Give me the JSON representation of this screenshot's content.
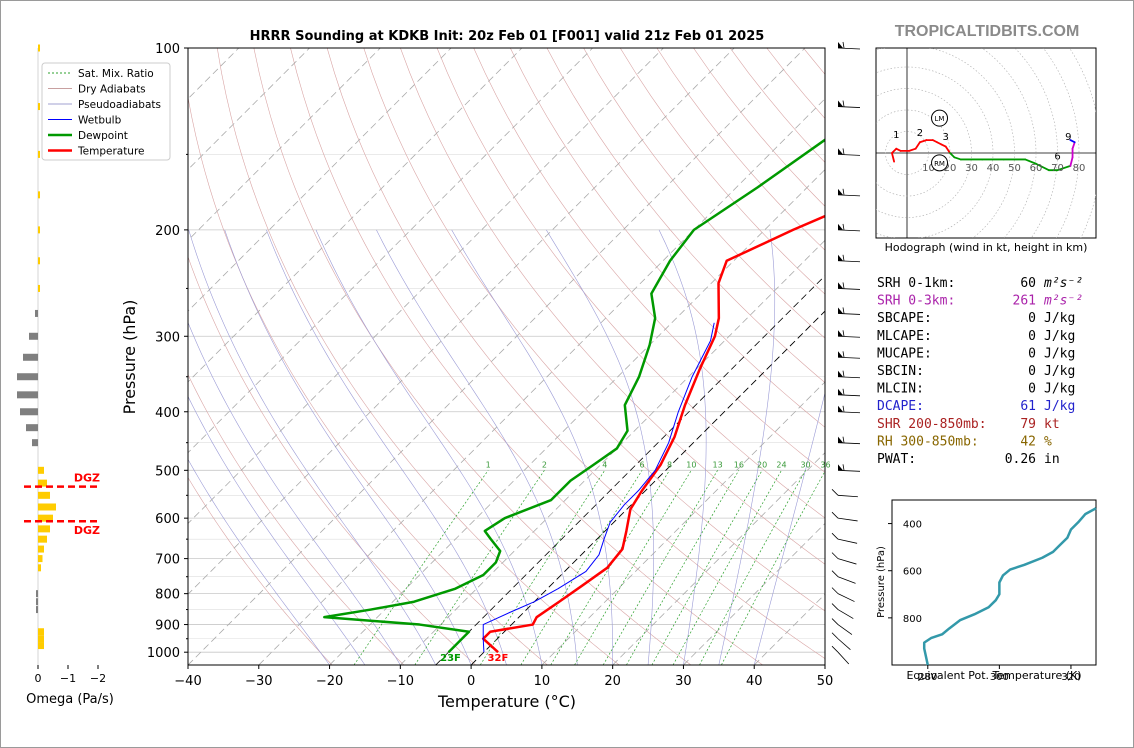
{
  "watermark": "TROPICALTIDBITS.COM",
  "chart_data": [
    {
      "type": "line",
      "name": "skewt",
      "title": "HRRR Sounding at KDKB Init: 20z Feb 01 [F001] valid 21z Feb 01 2025",
      "xlabel": "Temperature (°C)",
      "ylabel": "Pressure (hPa)",
      "xlim": [
        -40,
        50
      ],
      "ylim": [
        1050,
        100
      ],
      "y_scale": "log",
      "x_ticks": [
        -40,
        -30,
        -20,
        -10,
        0,
        10,
        20,
        30,
        40,
        50
      ],
      "x_tick_labels": [
        "−40",
        "−30",
        "−20",
        "−10",
        "0",
        "10",
        "20",
        "30",
        "40",
        "50"
      ],
      "y_ticks": [
        1000,
        900,
        800,
        700,
        600,
        500,
        400,
        300,
        200,
        100
      ],
      "legend": {
        "placement": "top-left",
        "entries": [
          {
            "label": "Sat. Mix. Ratio",
            "color": "#2ca02c",
            "style": "dotted"
          },
          {
            "label": "Dry Adiabats",
            "color": "#c8a0a0",
            "style": "solid"
          },
          {
            "label": "Pseudoadiabats",
            "color": "#a0a0d0",
            "style": "solid"
          },
          {
            "label": "Wetbulb",
            "color": "#0000ff",
            "style": "solid"
          },
          {
            "label": "Dewpoint",
            "color": "#009900",
            "style": "solid"
          },
          {
            "label": "Temperature",
            "color": "#ff0000",
            "style": "solid"
          }
        ]
      },
      "series": [
        {
          "name": "Temperature",
          "color": "#ff0000",
          "points": [
            [
              2,
              1000
            ],
            [
              -2,
              950
            ],
            [
              -2,
              925
            ],
            [
              3,
              900
            ],
            [
              2.5,
              875
            ],
            [
              3.5,
              825
            ],
            [
              4.5,
              775
            ],
            [
              5.5,
              725
            ],
            [
              5,
              675
            ],
            [
              3,
              630
            ],
            [
              0.5,
              580
            ],
            [
              -0.5,
              540
            ],
            [
              -1.5,
              490
            ],
            [
              -3.5,
              440
            ],
            [
              -6.5,
              390
            ],
            [
              -9.5,
              340
            ],
            [
              -12,
              300
            ],
            [
              -14,
              280
            ],
            [
              -19,
              245
            ],
            [
              -21,
              225
            ],
            [
              -16,
              200
            ],
            [
              -8,
              170
            ],
            [
              -2,
              140
            ],
            [
              0,
              120
            ],
            [
              3,
              105
            ],
            [
              4.5,
              100
            ]
          ]
        },
        {
          "name": "Dewpoint",
          "color": "#009900",
          "points": [
            [
              -5,
              1000
            ],
            [
              -5,
              960
            ],
            [
              -5,
              925
            ],
            [
              -13,
              900
            ],
            [
              -27.5,
              875
            ],
            [
              -22,
              850
            ],
            [
              -17,
              825
            ],
            [
              -13,
              785
            ],
            [
              -11,
              745
            ],
            [
              -11,
              710
            ],
            [
              -12,
              680
            ],
            [
              -15,
              650
            ],
            [
              -17,
              630
            ],
            [
              -16,
              600
            ],
            [
              -12,
              560
            ],
            [
              -12,
              520
            ],
            [
              -11,
              490
            ],
            [
              -10,
              460
            ],
            [
              -11,
              430
            ],
            [
              -15,
              390
            ],
            [
              -17,
              350
            ],
            [
              -20,
              310
            ],
            [
              -23,
              280
            ],
            [
              -27,
              255
            ],
            [
              -29,
              225
            ],
            [
              -30,
              200
            ],
            [
              -27,
              170
            ],
            [
              -24,
              140
            ],
            [
              -24,
              120
            ],
            [
              -22,
              100
            ]
          ]
        },
        {
          "name": "Wetbulb",
          "color": "#0000ff",
          "points": [
            [
              0,
              1000
            ],
            [
              -2,
              950
            ],
            [
              -4,
              900
            ],
            [
              -2,
              860
            ],
            [
              0,
              825
            ],
            [
              1.5,
              785
            ],
            [
              3,
              735
            ],
            [
              2.5,
              690
            ],
            [
              1,
              650
            ],
            [
              -0.5,
              610
            ],
            [
              -1,
              570
            ],
            [
              -1,
              540
            ],
            [
              -1.5,
              500
            ],
            [
              -3.5,
              450
            ],
            [
              -6.5,
              400
            ],
            [
              -9.5,
              350
            ],
            [
              -12,
              305
            ],
            [
              -14,
              285
            ]
          ]
        }
      ],
      "mixing_ratio_labels": [
        "1",
        "2",
        "4",
        "6",
        "8",
        "10",
        "13",
        "16",
        "20",
        "24",
        "30",
        "36"
      ],
      "freezing_labels": {
        "minus5": "23F",
        "zero": "32F"
      },
      "wind_barbs": [
        {
          "pressure": 100
        },
        {
          "pressure": 125
        },
        {
          "pressure": 150
        },
        {
          "pressure": 175
        },
        {
          "pressure": 200
        },
        {
          "pressure": 225
        },
        {
          "pressure": 250
        },
        {
          "pressure": 275
        },
        {
          "pressure": 300
        },
        {
          "pressure": 325
        },
        {
          "pressure": 350
        },
        {
          "pressure": 375
        },
        {
          "pressure": 400
        },
        {
          "pressure": 450
        },
        {
          "pressure": 500
        },
        {
          "pressure": 550
        },
        {
          "pressure": 600
        },
        {
          "pressure": 650
        },
        {
          "pressure": 700
        },
        {
          "pressure": 750
        },
        {
          "pressure": 800
        },
        {
          "pressure": 850
        },
        {
          "pressure": 900
        },
        {
          "pressure": 950
        },
        {
          "pressure": 1000
        }
      ]
    },
    {
      "type": "bar",
      "name": "omega",
      "xlabel": "Omega (Pa/s)",
      "x_ticks": [
        "0",
        "−1",
        "−2"
      ],
      "dgz_label": "DGZ",
      "color_positive": "#ffcc00",
      "color_negative": "#7f7f7f",
      "bars": [
        {
          "pressure": 100,
          "omega": 0.05
        },
        {
          "pressure": 125,
          "omega": 0.05
        },
        {
          "pressure": 150,
          "omega": 0.05
        },
        {
          "pressure": 175,
          "omega": 0.05
        },
        {
          "pressure": 200,
          "omega": 0.05
        },
        {
          "pressure": 225,
          "omega": 0.05
        },
        {
          "pressure": 250,
          "omega": 0.05
        },
        {
          "pressure": 275,
          "omega": -0.1
        },
        {
          "pressure": 300,
          "omega": -0.3
        },
        {
          "pressure": 325,
          "omega": -0.5
        },
        {
          "pressure": 350,
          "omega": -0.7
        },
        {
          "pressure": 375,
          "omega": -0.7
        },
        {
          "pressure": 400,
          "omega": -0.6
        },
        {
          "pressure": 425,
          "omega": -0.4
        },
        {
          "pressure": 450,
          "omega": -0.2
        },
        {
          "pressure": 500,
          "omega": 0.2
        },
        {
          "pressure": 525,
          "omega": 0.3
        },
        {
          "pressure": 550,
          "omega": 0.4
        },
        {
          "pressure": 575,
          "omega": 0.6
        },
        {
          "pressure": 600,
          "omega": 0.5
        },
        {
          "pressure": 625,
          "omega": 0.4
        },
        {
          "pressure": 650,
          "omega": 0.3
        },
        {
          "pressure": 675,
          "omega": 0.2
        },
        {
          "pressure": 700,
          "omega": 0.15
        },
        {
          "pressure": 725,
          "omega": 0.1
        },
        {
          "pressure": 800,
          "omega": -0.05
        },
        {
          "pressure": 825,
          "omega": -0.05
        },
        {
          "pressure": 850,
          "omega": -0.05
        },
        {
          "pressure": 925,
          "omega": 0.2
        },
        {
          "pressure": 950,
          "omega": 0.2
        },
        {
          "pressure": 975,
          "omega": 0.2
        }
      ],
      "dgz_pressures": [
        532,
        607
      ]
    },
    {
      "type": "line",
      "name": "hodograph",
      "xlabel": "Hodograph (wind in kt, height in km)",
      "ring_labels": [
        "10",
        "20",
        "30",
        "40",
        "50",
        "60",
        "70",
        "80"
      ],
      "points_kt": [
        [
          -6,
          -4
        ],
        [
          -7,
          0
        ],
        [
          -5,
          2
        ],
        [
          -3,
          1
        ],
        [
          1,
          1
        ],
        [
          4,
          2
        ],
        [
          6,
          5
        ],
        [
          9,
          6
        ],
        [
          12,
          6
        ],
        [
          14,
          5
        ],
        [
          16,
          4
        ],
        [
          18,
          3
        ],
        [
          20,
          0
        ],
        [
          22,
          -2
        ],
        [
          25,
          -3
        ],
        [
          35,
          -3
        ],
        [
          45,
          -3
        ],
        [
          55,
          -3
        ],
        [
          60,
          -5
        ],
        [
          66,
          -8
        ],
        [
          70,
          -8
        ],
        [
          76,
          -6
        ],
        [
          77,
          -2
        ],
        [
          77,
          2
        ],
        [
          78,
          5
        ],
        [
          76,
          6
        ]
      ],
      "segment_colors": [
        "#ff0000",
        "#ff0000",
        "#ff0000",
        "#ff0000",
        "#ff0000",
        "#ff0000",
        "#ff0000",
        "#ff0000",
        "#ff0000",
        "#ff0000",
        "#ff0000",
        "#ff0000",
        "#009900",
        "#009900",
        "#009900",
        "#009900",
        "#009900",
        "#009900",
        "#009900",
        "#009900",
        "#009900",
        "#cc00cc",
        "#cc00cc",
        "#cc00cc",
        "#0000ff"
      ],
      "height_labels": [
        {
          "label": "1",
          "u": -5,
          "v": 7
        },
        {
          "label": "2",
          "u": 6,
          "v": 8
        },
        {
          "label": "3",
          "u": 18,
          "v": 6
        },
        {
          "label": "6",
          "u": 70,
          "v": -3
        },
        {
          "label": "9",
          "u": 75,
          "v": 6
        }
      ],
      "storm_motion": [
        {
          "label": "LM",
          "u": 8,
          "v": 11
        },
        {
          "label": "RM",
          "u": 8,
          "v": -2
        }
      ]
    },
    {
      "type": "line",
      "name": "theta_e",
      "xlabel": "Equivalent Pot. Temperature (K)",
      "ylabel": "Pressure (hPa)",
      "xlim": [
        270,
        327
      ],
      "ylim": [
        1000,
        300
      ],
      "x_ticks": [
        "280",
        "300",
        "320"
      ],
      "y_ticks": [
        "400",
        "600",
        "800"
      ],
      "points": [
        [
          280,
          1000
        ],
        [
          279,
          930
        ],
        [
          279,
          905
        ],
        [
          281,
          885
        ],
        [
          284,
          870
        ],
        [
          286,
          845
        ],
        [
          289,
          810
        ],
        [
          293,
          785
        ],
        [
          297,
          755
        ],
        [
          299,
          725
        ],
        [
          300,
          700
        ],
        [
          300,
          680
        ],
        [
          300,
          650
        ],
        [
          301,
          620
        ],
        [
          303,
          595
        ],
        [
          307,
          575
        ],
        [
          312,
          545
        ],
        [
          315,
          520
        ],
        [
          317,
          490
        ],
        [
          319,
          460
        ],
        [
          320,
          425
        ],
        [
          322,
          395
        ],
        [
          324,
          360
        ],
        [
          327,
          335
        ]
      ],
      "color": "#3399aa"
    }
  ],
  "indices": [
    {
      "label": "SRH 0-1km:",
      "value": "60",
      "unit_html": "m²s⁻²",
      "color": "#000000"
    },
    {
      "label": "SRH 0-3km:",
      "value": "261",
      "unit_html": "m²s⁻²",
      "color": "#aa22aa"
    },
    {
      "label": "SBCAPE:",
      "value": "0",
      "unit_html": "J/kg",
      "color": "#000000"
    },
    {
      "label": "MLCAPE:",
      "value": "0",
      "unit_html": "J/kg",
      "color": "#000000"
    },
    {
      "label": "MUCAPE:",
      "value": "0",
      "unit_html": "J/kg",
      "color": "#000000"
    },
    {
      "label": "SBCIN:",
      "value": "0",
      "unit_html": "J/kg",
      "color": "#000000"
    },
    {
      "label": "MLCIN:",
      "value": "0",
      "unit_html": "J/kg",
      "color": "#000000"
    },
    {
      "label": "DCAPE:",
      "value": "61",
      "unit_html": "J/kg",
      "color": "#2222cc"
    },
    {
      "label": "SHR 200-850mb:",
      "value": "79",
      "unit_html": "kt",
      "color": "#aa2222"
    },
    {
      "label": "RH 300-850mb:",
      "value": "42",
      "unit_html": "%",
      "color": "#886600"
    },
    {
      "label": "PWAT:",
      "value": "0.26",
      "unit_html": "in",
      "color": "#000000"
    }
  ]
}
